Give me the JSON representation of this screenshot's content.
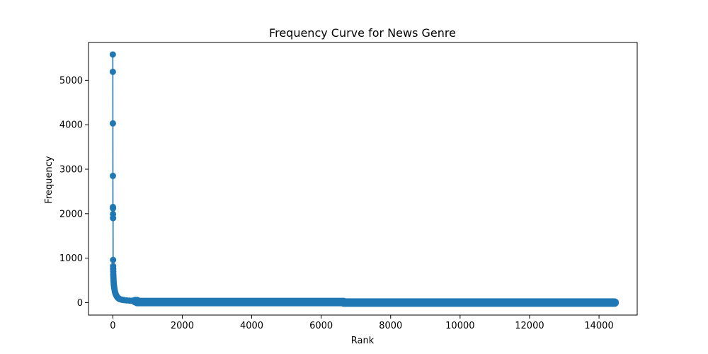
{
  "chart_data": {
    "type": "line",
    "title": "Frequency Curve for News Genre",
    "xlabel": "Rank",
    "ylabel": "Frequency",
    "xlim": [
      -700,
      15100
    ],
    "ylim": [
      -280,
      5850
    ],
    "xticks": [
      0,
      2000,
      4000,
      6000,
      8000,
      10000,
      12000,
      14000
    ],
    "yticks": [
      0,
      1000,
      2000,
      3000,
      4000,
      5000
    ],
    "grid": false,
    "marker": "circle",
    "color": "#1f77b4",
    "series": [
      {
        "head_points": [
          [
            0,
            5580
          ],
          [
            1,
            5190
          ],
          [
            2,
            4030
          ],
          [
            3,
            2850
          ],
          [
            4,
            2150
          ],
          [
            5,
            2120
          ],
          [
            6,
            1990
          ],
          [
            7,
            1900
          ],
          [
            8,
            960
          ],
          [
            9,
            820
          ],
          [
            10,
            760
          ],
          [
            12,
            700
          ],
          [
            14,
            640
          ],
          [
            16,
            600
          ],
          [
            18,
            560
          ],
          [
            20,
            520
          ],
          [
            23,
            480
          ],
          [
            26,
            440
          ],
          [
            30,
            400
          ],
          [
            35,
            370
          ],
          [
            40,
            340
          ],
          [
            46,
            310
          ],
          [
            53,
            280
          ],
          [
            60,
            250
          ],
          [
            70,
            220
          ],
          [
            80,
            195
          ],
          [
            95,
            170
          ],
          [
            110,
            145
          ],
          [
            130,
            125
          ],
          [
            150,
            105
          ],
          [
            175,
            90
          ],
          [
            200,
            80
          ],
          [
            240,
            70
          ],
          [
            280,
            62
          ],
          [
            330,
            56
          ],
          [
            400,
            50
          ],
          [
            480,
            45
          ],
          [
            560,
            42
          ],
          [
            640,
            40
          ]
        ],
        "tail_segments": [
          {
            "from": 640,
            "to": 700,
            "value": 35
          },
          {
            "from": 700,
            "to": 6650,
            "value": 12
          },
          {
            "from": 6650,
            "to": 14450,
            "value": 1
          }
        ]
      }
    ]
  }
}
